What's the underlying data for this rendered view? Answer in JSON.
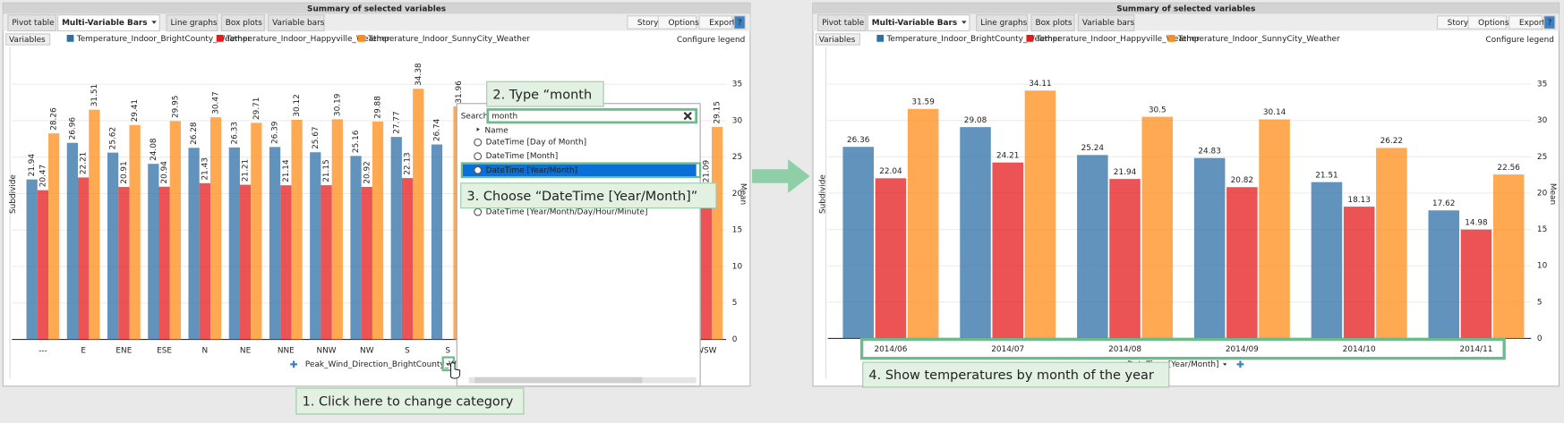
{
  "panels": [
    {
      "title": "Summary of selected variables",
      "tabs": [
        "Pivot table",
        "Multi-Variable Bars",
        "Line graphs",
        "Box plots",
        "Variable bars"
      ],
      "buttons": [
        "Story",
        "Options",
        "Export",
        "?"
      ],
      "variables": "Variables",
      "configure_legend": "Configure legend",
      "subdivide": "Subdivide",
      "mean": "Mean",
      "x_axis_label": "Peak_Wind_Direction_BrightCounty_Weather",
      "chart_data": {
        "type": "bar",
        "categories": [
          "---",
          "E",
          "ENE",
          "ESE",
          "N",
          "NE",
          "NNE",
          "NNW",
          "NW",
          "S",
          "S",
          "WSW"
        ],
        "series": [
          {
            "name": "Temperature_Indoor_BrightCounty_Weather",
            "color": "#2e6fa6",
            "values": [
              21.94,
              26.96,
              25.62,
              24.08,
              26.28,
              26.33,
              26.39,
              25.67,
              25.16,
              27.77,
              26.74,
              null
            ]
          },
          {
            "name": "Temperature_Indoor_Happyville_Weather",
            "color": "#e41a1c",
            "values": [
              20.47,
              22.21,
              20.91,
              20.94,
              21.43,
              21.21,
              21.14,
              21.15,
              20.92,
              22.13,
              null,
              21.09
            ]
          },
          {
            "name": "Temperature_Indoor_SunnyCity_Weather",
            "color": "#ff8c1a",
            "values": [
              28.26,
              31.51,
              29.41,
              29.95,
              30.47,
              29.71,
              30.12,
              30.19,
              29.88,
              34.38,
              31.96,
              29.15
            ]
          }
        ],
        "ylim": [
          0,
          40
        ],
        "yticks": [
          0,
          5,
          10,
          15,
          20,
          25,
          30,
          35
        ],
        "grid": true
      }
    },
    {
      "title": "Summary of selected variables",
      "tabs": [
        "Pivot table",
        "Multi-Variable Bars",
        "Line graphs",
        "Box plots",
        "Variable bars"
      ],
      "buttons": [
        "Story",
        "Options",
        "Export",
        "?"
      ],
      "variables": "Variables",
      "configure_legend": "Configure legend",
      "subdivide": "Subdivide",
      "mean": "Mean",
      "x_axis_label": "DateTime [Year/Month]",
      "chart_data": {
        "type": "bar",
        "categories": [
          "2014/06",
          "2014/07",
          "2014/08",
          "2014/09",
          "2014/10",
          "2014/11"
        ],
        "series": [
          {
            "name": "Temperature_Indoor_BrightCounty_Weather",
            "color": "#2e6fa6",
            "values": [
              26.36,
              29.08,
              25.24,
              24.83,
              21.51,
              17.62
            ]
          },
          {
            "name": "Temperature_Indoor_Happyville_Weather",
            "color": "#e41a1c",
            "values": [
              22.04,
              24.21,
              21.94,
              20.82,
              18.13,
              14.98
            ]
          },
          {
            "name": "Temperature_Indoor_SunnyCity_Weather",
            "color": "#ff8c1a",
            "values": [
              31.59,
              34.11,
              30.5,
              30.14,
              26.22,
              22.56
            ]
          }
        ],
        "ylim": [
          0,
          40
        ],
        "yticks": [
          0,
          5,
          10,
          15,
          20,
          25,
          30,
          35
        ],
        "grid": true
      }
    }
  ],
  "search_popup": {
    "label": "Search:",
    "query": "month",
    "header": "Name",
    "options": [
      "DateTime [Day of Month]",
      "DateTime [Month]",
      "DateTime [Year/Month]",
      "DateTime [Year/Month/Day/Hour/Minute]"
    ]
  },
  "callouts": [
    "1. Click here to change category",
    "2. Type “month",
    "3. Choose “DateTime [Year/Month]”",
    "4. Show temperatures by month of the year"
  ]
}
